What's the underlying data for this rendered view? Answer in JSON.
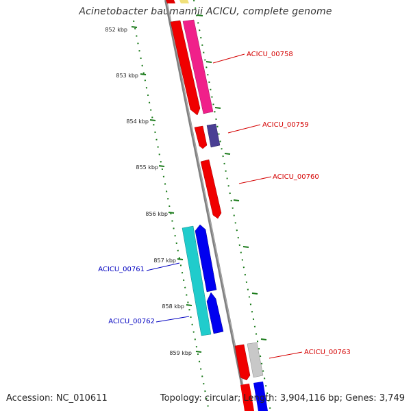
{
  "title": "Acinetobacter baumannii ACICU, complete genome",
  "accession": "Accession: NC_010611",
  "topology": "Topology: circular; Length: 3,904,116 bp; Genes: 3,749",
  "colors": {
    "backbone": "#808080",
    "tick": "#1a7a1a",
    "label_forward": "#d40000",
    "label_reverse": "#0000c0"
  },
  "ticks": [
    {
      "label": "852 kbp"
    },
    {
      "label": "853 kbp"
    },
    {
      "label": "854 kbp"
    },
    {
      "label": "855 kbp"
    },
    {
      "label": "856 kbp"
    },
    {
      "label": "857 kbp"
    },
    {
      "label": "858 kbp"
    },
    {
      "label": "859 kbp"
    }
  ],
  "gene_labels": [
    {
      "text": "ACICU_00758"
    },
    {
      "text": "ACICU_00759"
    },
    {
      "text": "ACICU_00760"
    },
    {
      "text": "ACICU_00761"
    },
    {
      "text": "ACICU_00762"
    },
    {
      "text": "ACICU_00763"
    }
  ]
}
